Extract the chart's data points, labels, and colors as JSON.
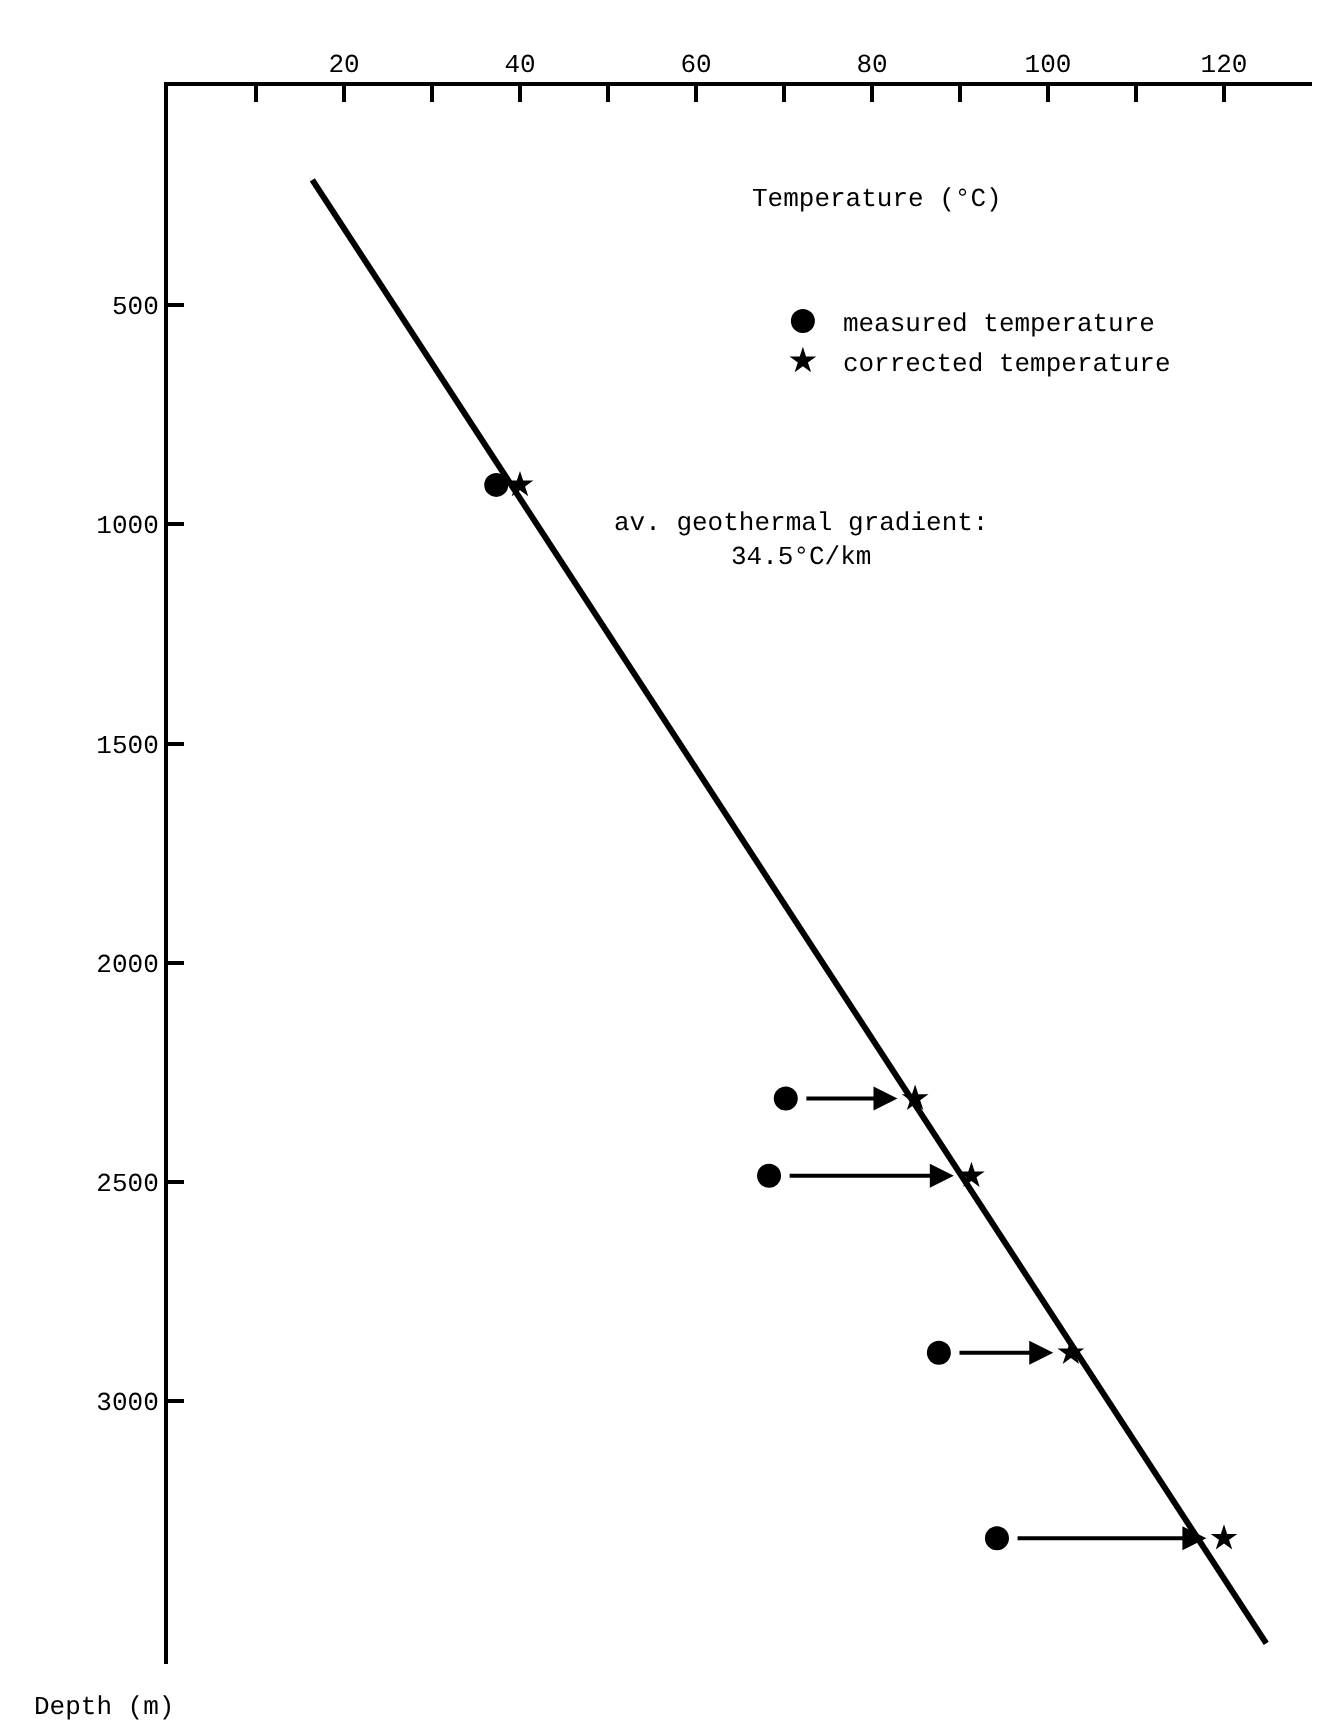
{
  "chart_data": {
    "type": "scatter",
    "xlabel": "Temperature (°C)",
    "ylabel": "Depth (m)",
    "xlim": [
      0,
      130
    ],
    "ylim": [
      3600,
      0
    ],
    "xticks": [
      {
        "value": 10,
        "label": null
      },
      20,
      {
        "value": 30,
        "label": null
      },
      40,
      {
        "value": 50,
        "label": null
      },
      60,
      {
        "value": 70,
        "label": null
      },
      80,
      {
        "value": 90,
        "label": null
      },
      100,
      {
        "value": 110,
        "label": null
      },
      120
    ],
    "yticks": [
      500,
      1000,
      1500,
      2000,
      2500,
      3000
    ],
    "series": [
      {
        "type": "line",
        "color": "#000000",
        "x": [
          16.4,
          124.8
        ],
        "values": [
          214,
          3553
        ],
        "marker": "none",
        "line_style": "solid"
      },
      {
        "name": "measured temperature",
        "color": "#000000",
        "marker": "circle",
        "x": [
          37.3,
          70.2,
          68.3,
          87.6,
          94.2
        ],
        "values": [
          910,
          2310,
          2486,
          2890,
          3313
        ]
      },
      {
        "name": "corrected temperature",
        "color": "#000000",
        "marker": "star",
        "x": [
          40.0,
          84.9,
          91.3,
          102.6,
          120.0
        ],
        "values": [
          910,
          2310,
          2486,
          2890,
          3313
        ]
      }
    ],
    "annotations": [
      "av. geothermal gradient:\n34.5°C/km"
    ],
    "legend": "top right",
    "grid": false
  }
}
